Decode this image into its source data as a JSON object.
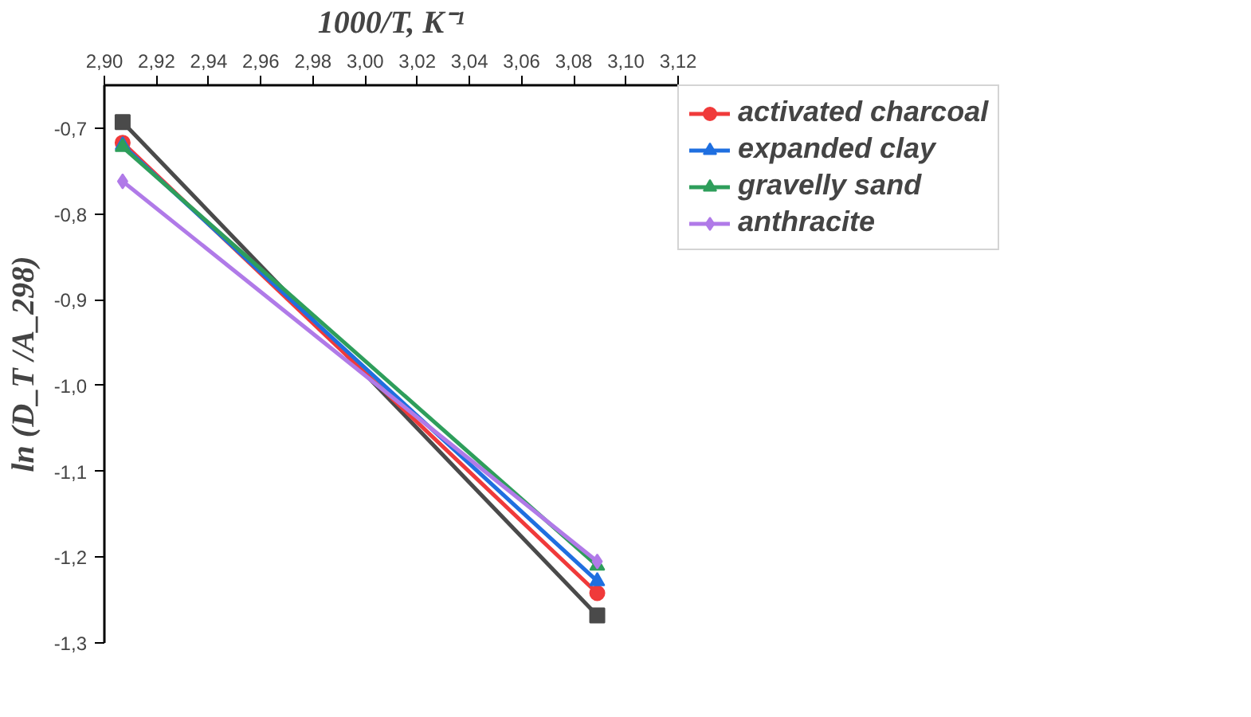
{
  "chart_data": {
    "type": "line",
    "xlabel": "1000/T, K⁻¹",
    "ylabel": "ln (D_T /A_298)",
    "x": [
      2.907,
      3.089
    ],
    "xlim": [
      2.9,
      3.12
    ],
    "ylim": [
      -1.3,
      -0.65
    ],
    "xticks": [
      {
        "value": 2.9,
        "label": "2,90"
      },
      {
        "value": 2.92,
        "label": "2,92"
      },
      {
        "value": 2.94,
        "label": "2,94"
      },
      {
        "value": 2.96,
        "label": "2,96"
      },
      {
        "value": 2.98,
        "label": "2,98"
      },
      {
        "value": 3.0,
        "label": "3,00"
      },
      {
        "value": 3.02,
        "label": "3,02"
      },
      {
        "value": 3.04,
        "label": "3,04"
      },
      {
        "value": 3.06,
        "label": "3,06"
      },
      {
        "value": 3.08,
        "label": "3,08"
      },
      {
        "value": 3.1,
        "label": "3,10"
      },
      {
        "value": 3.12,
        "label": "3,12"
      }
    ],
    "yticks": [
      {
        "value": -0.7,
        "label": "-0,7"
      },
      {
        "value": -0.8,
        "label": "-0,8"
      },
      {
        "value": -0.9,
        "label": "-0,9"
      },
      {
        "value": -1.0,
        "label": "-1,0"
      },
      {
        "value": -1.1,
        "label": "-1,1"
      },
      {
        "value": -1.2,
        "label": "-1,2"
      },
      {
        "value": -1.3,
        "label": "-1,3"
      }
    ],
    "grid": false,
    "legend": "right",
    "line_style": "solid",
    "series": [
      {
        "color": "#4a4a4a",
        "marker": "square",
        "values": [
          -0.693,
          -1.268
        ]
      },
      {
        "name": "activated charcoal",
        "color": "#f03a3a",
        "marker": "circle",
        "values": [
          -0.717,
          -1.242
        ]
      },
      {
        "name": "expanded clay",
        "color": "#1f6fe0",
        "marker": "triangle",
        "values": [
          -0.72,
          -1.228
        ]
      },
      {
        "name": "gravelly sand",
        "color": "#2e9e5b",
        "marker": "triangle",
        "values": [
          -0.722,
          -1.21
        ]
      },
      {
        "name": "anthracite",
        "color": "#b07ae8",
        "marker": "diamond",
        "values": [
          -0.762,
          -1.205
        ]
      }
    ]
  }
}
